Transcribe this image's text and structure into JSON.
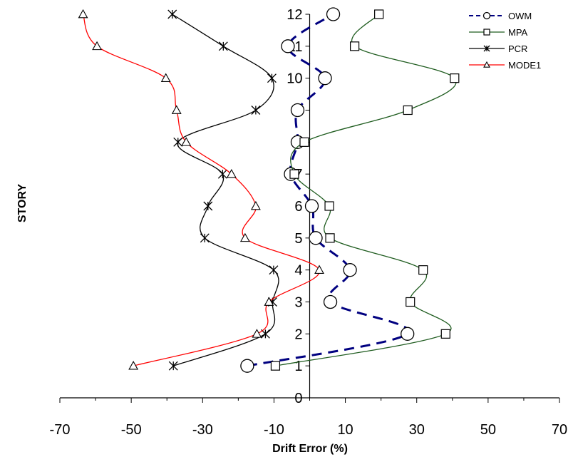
{
  "chart_data": {
    "type": "line",
    "xlabel": "Drift Error (%)",
    "ylabel": "STORY",
    "xlim": [
      -70,
      70
    ],
    "ylim": [
      0,
      12
    ],
    "x_ticks": [
      "-70",
      "-50",
      "-30",
      "-10",
      "10",
      "30",
      "50",
      "70"
    ],
    "y_ticks": [
      "0",
      "1",
      "2",
      "3",
      "4",
      "5",
      "6",
      "7",
      "8",
      "9",
      "10",
      "11",
      "12"
    ],
    "grid": false,
    "legend_position": "top-right",
    "series": [
      {
        "name": "OWM",
        "color": "#000080",
        "marker": "circle",
        "line_style": "dashed",
        "x": [
          -17.5,
          27.4,
          5.8,
          11.3,
          1.7,
          0.6,
          -5.3,
          -3.4,
          -3.4,
          4.3,
          -6.1,
          6.6
        ],
        "y": [
          1,
          2,
          3,
          4,
          5,
          6,
          7,
          8,
          9,
          10,
          11,
          12
        ]
      },
      {
        "name": "MPA",
        "color": "#1f5c1f",
        "marker": "square",
        "line_style": "solid",
        "x": [
          -9.6,
          38.1,
          28.2,
          31.8,
          5.7,
          5.5,
          -4.3,
          -1.5,
          27.5,
          40.6,
          12.6,
          19.4
        ],
        "y": [
          1,
          2,
          3,
          4,
          5,
          6,
          7,
          8,
          9,
          10,
          11,
          12
        ]
      },
      {
        "name": "PCR",
        "color": "#000000",
        "marker": "star",
        "line_style": "solid",
        "x": [
          -38.2,
          -12.4,
          -10.4,
          -10.1,
          -29.4,
          -28.5,
          -24.4,
          -36.9,
          -15.1,
          -10.6,
          -24.2,
          -38.5
        ],
        "y": [
          1,
          2,
          3,
          4,
          5,
          6,
          7,
          8,
          9,
          10,
          11,
          12
        ]
      },
      {
        "name": "MODE1",
        "color": "#ff0000",
        "marker": "triangle",
        "line_style": "solid",
        "x": [
          -49.4,
          -14.8,
          -11.4,
          2.7,
          -18.1,
          -15.1,
          -21.9,
          -34.6,
          -37.3,
          -40.3,
          -59.6,
          -63.5
        ],
        "y": [
          1,
          2,
          3,
          4,
          5,
          6,
          7,
          8,
          9,
          10,
          11,
          12
        ]
      }
    ]
  }
}
